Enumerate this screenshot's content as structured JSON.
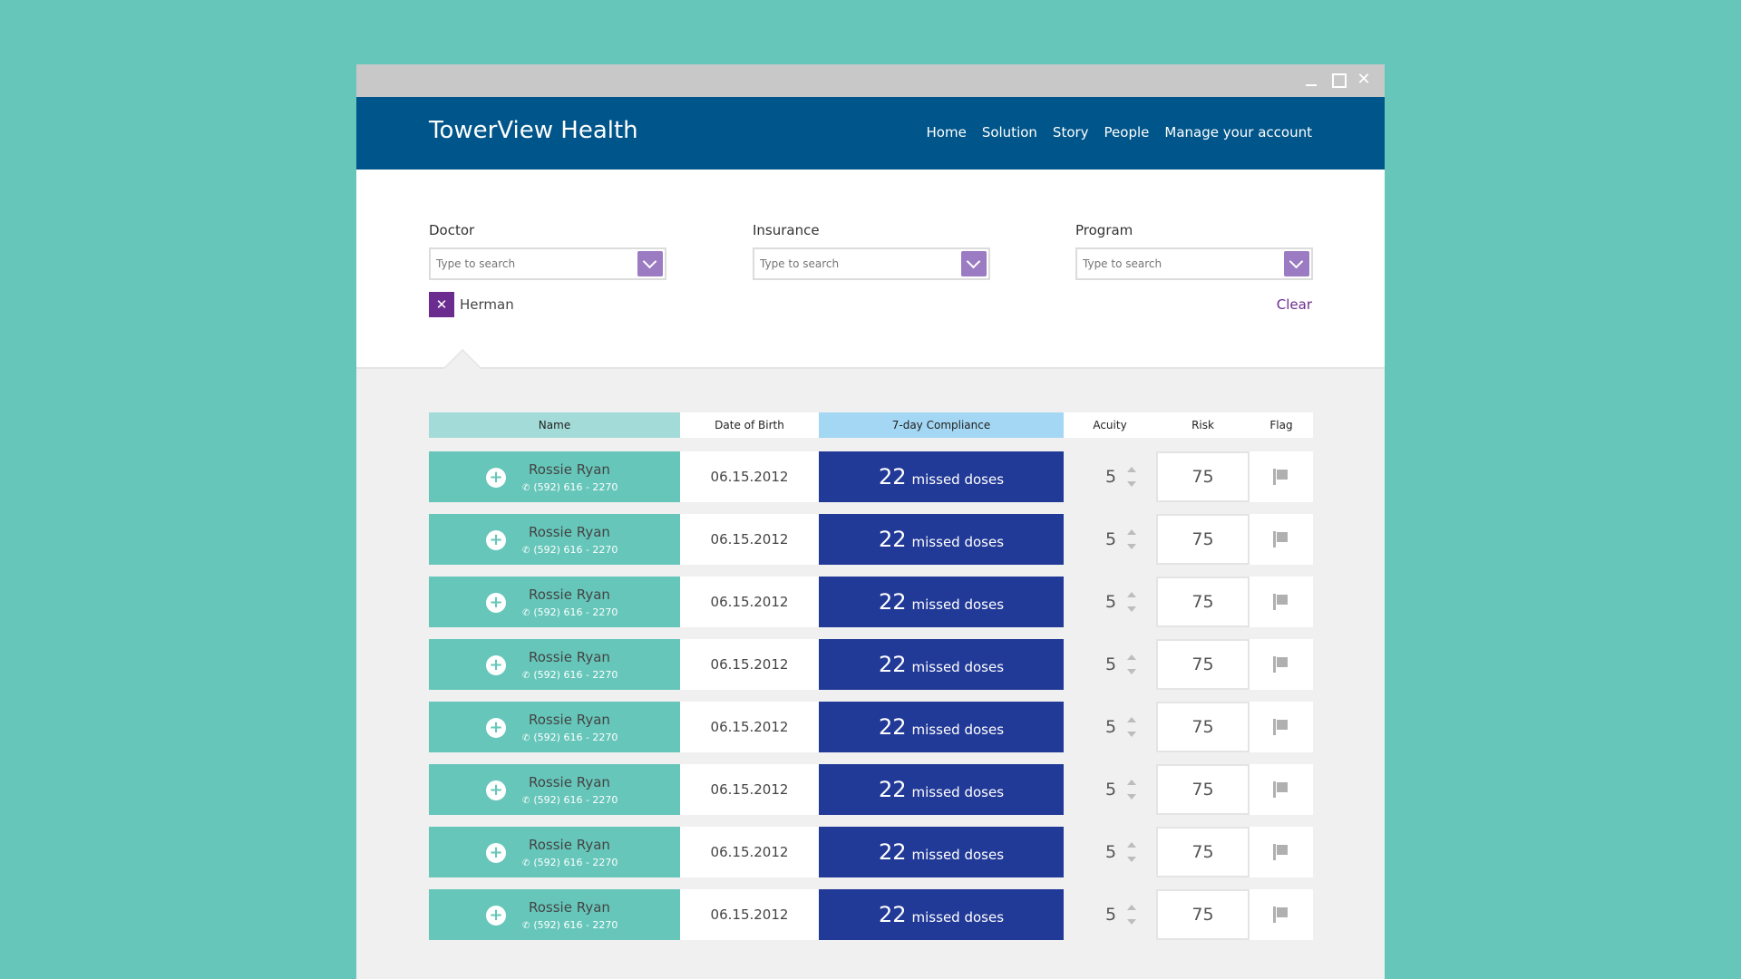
{
  "app": {
    "brand": "TowerView Health"
  },
  "nav": [
    "Home",
    "Solution",
    "Story",
    "People",
    "Manage your account"
  ],
  "filters": [
    {
      "label": "Doctor",
      "placeholder": "Type to search"
    },
    {
      "label": "Insurance",
      "placeholder": "Type to search"
    },
    {
      "label": "Program",
      "placeholder": "Type to search"
    }
  ],
  "selected_tag": "Herman",
  "clear_label": "Clear",
  "table": {
    "headers": [
      "Name",
      "Date of Birth",
      "7-day Compliance",
      "Acuity",
      "Risk",
      "Flag"
    ],
    "rows": [
      {
        "name": "Rossie Ryan",
        "phone": "(592) 616 - 2270",
        "dob": "06.15.2012",
        "missed": "22",
        "missed_label": "missed doses",
        "acuity": "5",
        "risk": "75"
      },
      {
        "name": "Rossie Ryan",
        "phone": "(592) 616 - 2270",
        "dob": "06.15.2012",
        "missed": "22",
        "missed_label": "missed doses",
        "acuity": "5",
        "risk": "75"
      },
      {
        "name": "Rossie Ryan",
        "phone": "(592) 616 - 2270",
        "dob": "06.15.2012",
        "missed": "22",
        "missed_label": "missed doses",
        "acuity": "5",
        "risk": "75"
      },
      {
        "name": "Rossie Ryan",
        "phone": "(592) 616 - 2270",
        "dob": "06.15.2012",
        "missed": "22",
        "missed_label": "missed doses",
        "acuity": "5",
        "risk": "75"
      },
      {
        "name": "Rossie Ryan",
        "phone": "(592) 616 - 2270",
        "dob": "06.15.2012",
        "missed": "22",
        "missed_label": "missed doses",
        "acuity": "5",
        "risk": "75"
      },
      {
        "name": "Rossie Ryan",
        "phone": "(592) 616 - 2270",
        "dob": "06.15.2012",
        "missed": "22",
        "missed_label": "missed doses",
        "acuity": "5",
        "risk": "75"
      },
      {
        "name": "Rossie Ryan",
        "phone": "(592) 616 - 2270",
        "dob": "06.15.2012",
        "missed": "22",
        "missed_label": "missed doses",
        "acuity": "5",
        "risk": "75"
      },
      {
        "name": "Rossie Ryan",
        "phone": "(592) 616 - 2270",
        "dob": "06.15.2012",
        "missed": "22",
        "missed_label": "missed doses",
        "acuity": "5",
        "risk": "75"
      }
    ]
  },
  "colors": {
    "background": "#66c6ba",
    "header": "#00558a",
    "accent_purple": "#6b2c8f",
    "compliance": "#223a97",
    "name_cell": "#66c6ba"
  },
  "icons": {
    "minimize": "minimize-icon",
    "maximize": "maximize-icon",
    "close": "close-icon",
    "dropdown": "chevron-down-icon",
    "remove_tag": "close-icon",
    "add": "plus-circle-icon",
    "phone": "phone-icon",
    "flag": "flag-icon"
  }
}
